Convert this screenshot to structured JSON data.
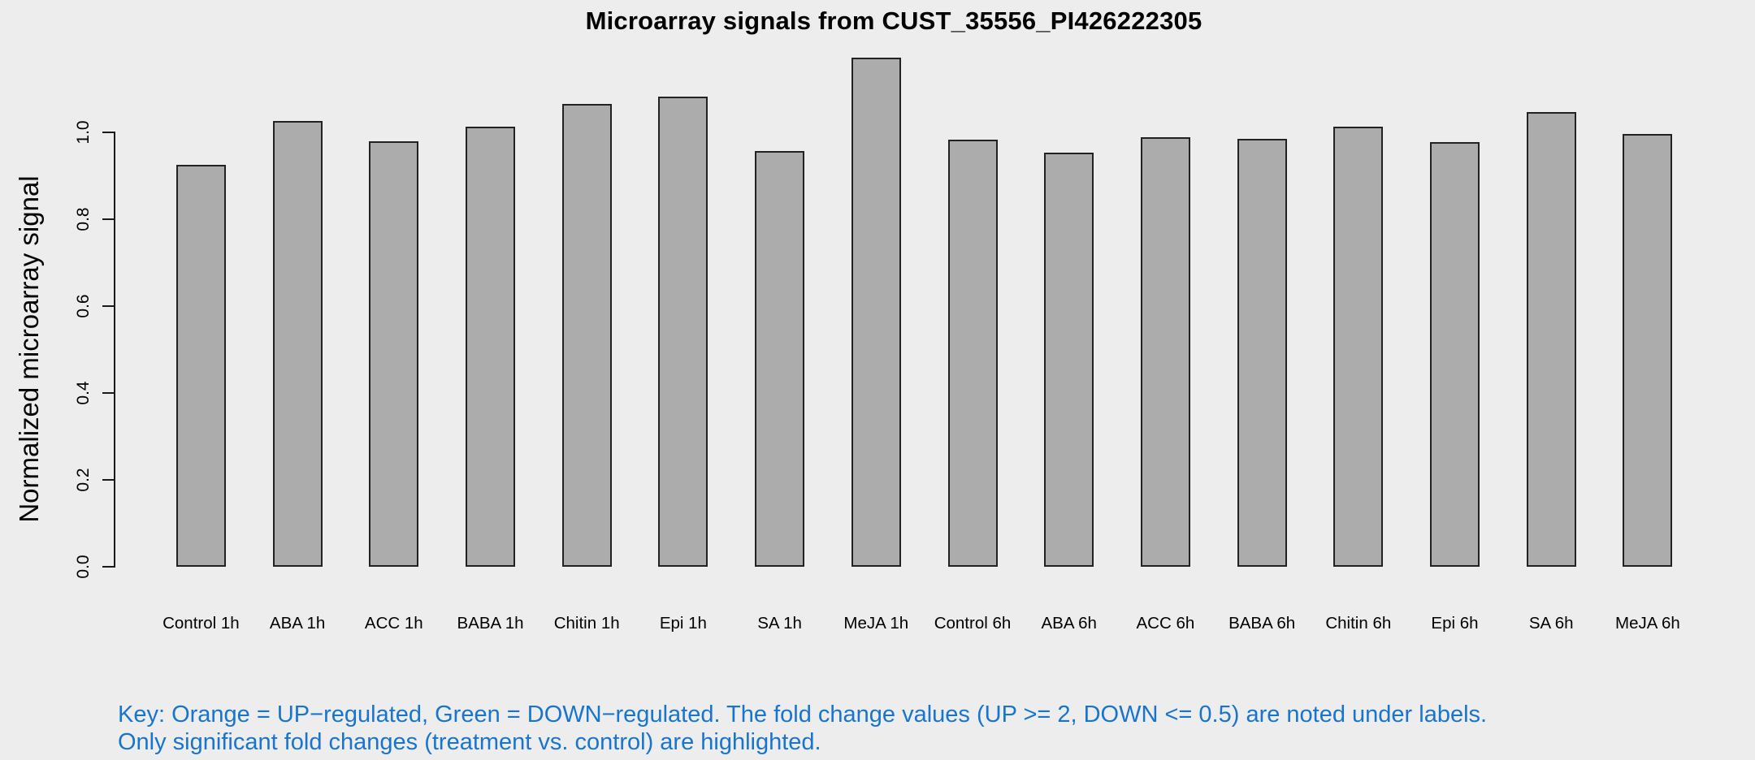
{
  "chart_data": {
    "type": "bar",
    "title": "Microarray signals from CUST_35556_PI426222305",
    "xlabel": "",
    "ylabel": "Normalized microarray signal",
    "categories": [
      "Control 1h",
      "ABA 1h",
      "ACC 1h",
      "BABA 1h",
      "Chitin 1h",
      "Epi 1h",
      "SA 1h",
      "MeJA 1h",
      "Control 6h",
      "ABA 6h",
      "ACC 6h",
      "BABA 6h",
      "Chitin 6h",
      "Epi 6h",
      "SA 6h",
      "MeJA 6h"
    ],
    "values": [
      0.924,
      1.025,
      0.978,
      1.013,
      1.064,
      1.081,
      0.956,
      1.17,
      0.983,
      0.953,
      0.988,
      0.985,
      1.013,
      0.977,
      1.045,
      0.995
    ],
    "ytick_labels": [
      "0.0",
      "0.2",
      "0.4",
      "0.6",
      "0.8",
      "1.0"
    ],
    "yticks": [
      0.0,
      0.2,
      0.4,
      0.6,
      0.8,
      1.0
    ],
    "ylim": [
      0,
      1.19
    ],
    "grid": false,
    "legend_position": "none",
    "bar_fill_color": "#ACACAC",
    "bar_border_color": "#222222"
  },
  "annotations": {
    "key_line1": "Key: Orange = UP−regulated, Green = DOWN−regulated. The fold change values (UP >= 2, DOWN <= 0.5) are noted under labels.",
    "key_line2": "Only significant fold changes (treatment vs. control) are highlighted.",
    "key_text_color": "#1874CD"
  },
  "colors": {
    "background": "#EDEDED",
    "axis_text": "#000000"
  }
}
